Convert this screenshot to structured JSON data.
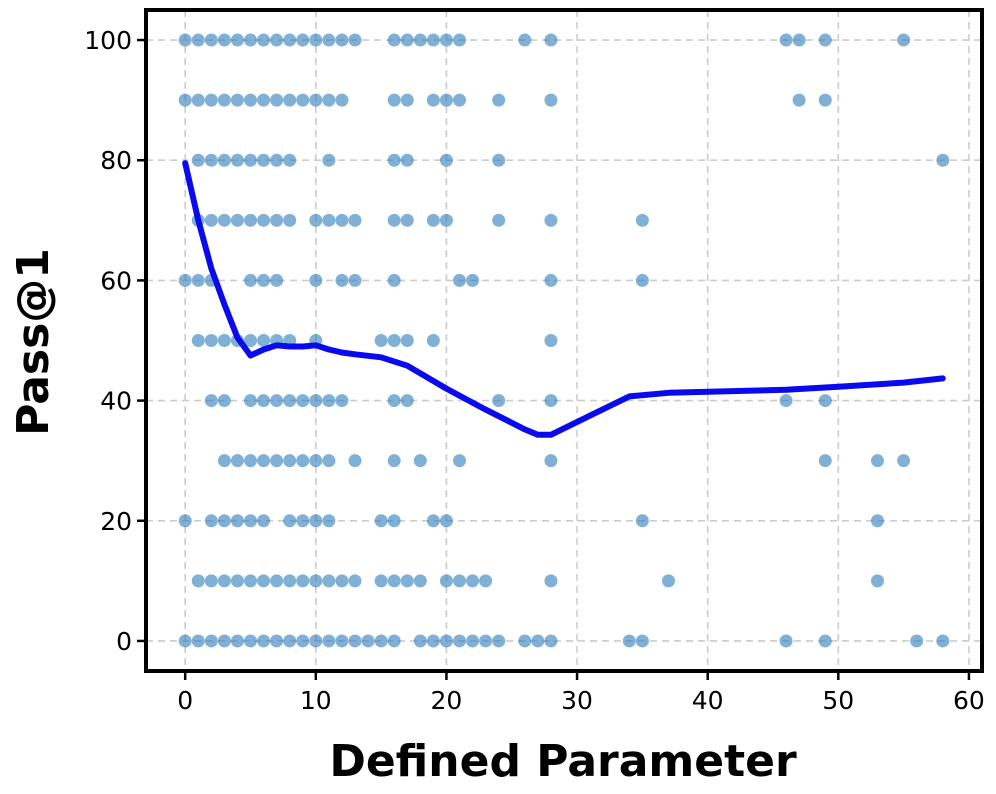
{
  "chart_data": {
    "type": "scatter",
    "xlabel": "Defined Parameter",
    "ylabel": "Pass@1",
    "xlim": [
      -3,
      61
    ],
    "ylim": [
      -5,
      105
    ],
    "xticks": [
      0,
      10,
      20,
      30,
      40,
      50,
      60
    ],
    "yticks": [
      0,
      20,
      40,
      60,
      80,
      100
    ],
    "grid": true,
    "colors": {
      "points": "#2b7bba",
      "trend": "#0a0af0",
      "grid": "#cccccc",
      "frame": "#000000"
    },
    "series": [
      {
        "kind": "scatter",
        "points": [
          [
            0,
            100
          ],
          [
            1,
            100
          ],
          [
            2,
            100
          ],
          [
            3,
            100
          ],
          [
            4,
            100
          ],
          [
            5,
            100
          ],
          [
            6,
            100
          ],
          [
            7,
            100
          ],
          [
            8,
            100
          ],
          [
            9,
            100
          ],
          [
            10,
            100
          ],
          [
            11,
            100
          ],
          [
            12,
            100
          ],
          [
            13,
            100
          ],
          [
            16,
            100
          ],
          [
            17,
            100
          ],
          [
            18,
            100
          ],
          [
            19,
            100
          ],
          [
            20,
            100
          ],
          [
            21,
            100
          ],
          [
            26,
            100
          ],
          [
            28,
            100
          ],
          [
            46,
            100
          ],
          [
            47,
            100
          ],
          [
            49,
            100
          ],
          [
            55,
            100
          ],
          [
            0,
            90
          ],
          [
            1,
            90
          ],
          [
            2,
            90
          ],
          [
            3,
            90
          ],
          [
            4,
            90
          ],
          [
            5,
            90
          ],
          [
            6,
            90
          ],
          [
            7,
            90
          ],
          [
            8,
            90
          ],
          [
            9,
            90
          ],
          [
            10,
            90
          ],
          [
            11,
            90
          ],
          [
            12,
            90
          ],
          [
            16,
            90
          ],
          [
            17,
            90
          ],
          [
            19,
            90
          ],
          [
            20,
            90
          ],
          [
            21,
            90
          ],
          [
            24,
            90
          ],
          [
            28,
            90
          ],
          [
            47,
            90
          ],
          [
            49,
            90
          ],
          [
            1,
            80
          ],
          [
            2,
            80
          ],
          [
            3,
            80
          ],
          [
            4,
            80
          ],
          [
            5,
            80
          ],
          [
            6,
            80
          ],
          [
            7,
            80
          ],
          [
            8,
            80
          ],
          [
            11,
            80
          ],
          [
            16,
            80
          ],
          [
            17,
            80
          ],
          [
            20,
            80
          ],
          [
            24,
            80
          ],
          [
            58,
            80
          ],
          [
            1,
            70
          ],
          [
            2,
            70
          ],
          [
            3,
            70
          ],
          [
            4,
            70
          ],
          [
            5,
            70
          ],
          [
            6,
            70
          ],
          [
            7,
            70
          ],
          [
            8,
            70
          ],
          [
            10,
            70
          ],
          [
            11,
            70
          ],
          [
            12,
            70
          ],
          [
            13,
            70
          ],
          [
            16,
            70
          ],
          [
            17,
            70
          ],
          [
            19,
            70
          ],
          [
            20,
            70
          ],
          [
            24,
            70
          ],
          [
            28,
            70
          ],
          [
            35,
            70
          ],
          [
            0,
            60
          ],
          [
            1,
            60
          ],
          [
            2,
            60
          ],
          [
            5,
            60
          ],
          [
            6,
            60
          ],
          [
            7,
            60
          ],
          [
            10,
            60
          ],
          [
            12,
            60
          ],
          [
            13,
            60
          ],
          [
            16,
            60
          ],
          [
            21,
            60
          ],
          [
            22,
            60
          ],
          [
            28,
            60
          ],
          [
            35,
            60
          ],
          [
            1,
            50
          ],
          [
            2,
            50
          ],
          [
            3,
            50
          ],
          [
            4,
            50
          ],
          [
            5,
            50
          ],
          [
            6,
            50
          ],
          [
            7,
            50
          ],
          [
            8,
            50
          ],
          [
            10,
            50
          ],
          [
            15,
            50
          ],
          [
            16,
            50
          ],
          [
            17,
            50
          ],
          [
            19,
            50
          ],
          [
            28,
            50
          ],
          [
            2,
            40
          ],
          [
            3,
            40
          ],
          [
            5,
            40
          ],
          [
            6,
            40
          ],
          [
            7,
            40
          ],
          [
            8,
            40
          ],
          [
            9,
            40
          ],
          [
            10,
            40
          ],
          [
            11,
            40
          ],
          [
            12,
            40
          ],
          [
            16,
            40
          ],
          [
            17,
            40
          ],
          [
            24,
            40
          ],
          [
            28,
            40
          ],
          [
            46,
            40
          ],
          [
            49,
            40
          ],
          [
            3,
            30
          ],
          [
            4,
            30
          ],
          [
            5,
            30
          ],
          [
            6,
            30
          ],
          [
            7,
            30
          ],
          [
            8,
            30
          ],
          [
            9,
            30
          ],
          [
            10,
            30
          ],
          [
            11,
            30
          ],
          [
            13,
            30
          ],
          [
            16,
            30
          ],
          [
            18,
            30
          ],
          [
            21,
            30
          ],
          [
            28,
            30
          ],
          [
            49,
            30
          ],
          [
            53,
            30
          ],
          [
            55,
            30
          ],
          [
            0,
            20
          ],
          [
            2,
            20
          ],
          [
            3,
            20
          ],
          [
            4,
            20
          ],
          [
            5,
            20
          ],
          [
            6,
            20
          ],
          [
            8,
            20
          ],
          [
            9,
            20
          ],
          [
            10,
            20
          ],
          [
            11,
            20
          ],
          [
            15,
            20
          ],
          [
            16,
            20
          ],
          [
            19,
            20
          ],
          [
            20,
            20
          ],
          [
            35,
            20
          ],
          [
            53,
            20
          ],
          [
            1,
            10
          ],
          [
            2,
            10
          ],
          [
            3,
            10
          ],
          [
            4,
            10
          ],
          [
            5,
            10
          ],
          [
            6,
            10
          ],
          [
            7,
            10
          ],
          [
            8,
            10
          ],
          [
            9,
            10
          ],
          [
            10,
            10
          ],
          [
            11,
            10
          ],
          [
            12,
            10
          ],
          [
            13,
            10
          ],
          [
            15,
            10
          ],
          [
            16,
            10
          ],
          [
            17,
            10
          ],
          [
            18,
            10
          ],
          [
            20,
            10
          ],
          [
            21,
            10
          ],
          [
            22,
            10
          ],
          [
            23,
            10
          ],
          [
            28,
            10
          ],
          [
            37,
            10
          ],
          [
            53,
            10
          ],
          [
            0,
            0
          ],
          [
            1,
            0
          ],
          [
            2,
            0
          ],
          [
            3,
            0
          ],
          [
            4,
            0
          ],
          [
            5,
            0
          ],
          [
            6,
            0
          ],
          [
            7,
            0
          ],
          [
            8,
            0
          ],
          [
            9,
            0
          ],
          [
            10,
            0
          ],
          [
            11,
            0
          ],
          [
            12,
            0
          ],
          [
            13,
            0
          ],
          [
            14,
            0
          ],
          [
            15,
            0
          ],
          [
            16,
            0
          ],
          [
            18,
            0
          ],
          [
            19,
            0
          ],
          [
            20,
            0
          ],
          [
            21,
            0
          ],
          [
            22,
            0
          ],
          [
            23,
            0
          ],
          [
            24,
            0
          ],
          [
            26,
            0
          ],
          [
            27,
            0
          ],
          [
            28,
            0
          ],
          [
            34,
            0
          ],
          [
            35,
            0
          ],
          [
            46,
            0
          ],
          [
            49,
            0
          ],
          [
            56,
            0
          ],
          [
            58,
            0
          ]
        ]
      },
      {
        "kind": "line",
        "points": [
          [
            0,
            79.5
          ],
          [
            1,
            70
          ],
          [
            2,
            62
          ],
          [
            3,
            56
          ],
          [
            4,
            50.5
          ],
          [
            5,
            47.5
          ],
          [
            6,
            48.5
          ],
          [
            7,
            49.2
          ],
          [
            8,
            49
          ],
          [
            9,
            49
          ],
          [
            10,
            49.2
          ],
          [
            11,
            48.5
          ],
          [
            12,
            48
          ],
          [
            13,
            47.7
          ],
          [
            15,
            47.2
          ],
          [
            17,
            45.8
          ],
          [
            20,
            42
          ],
          [
            23,
            38.5
          ],
          [
            26,
            35.2
          ],
          [
            27,
            34.3
          ],
          [
            28,
            34.3
          ],
          [
            31,
            37.5
          ],
          [
            34,
            40.7
          ],
          [
            37,
            41.3
          ],
          [
            46,
            41.8
          ],
          [
            50,
            42.3
          ],
          [
            55,
            43
          ],
          [
            58,
            43.7
          ]
        ]
      }
    ]
  }
}
